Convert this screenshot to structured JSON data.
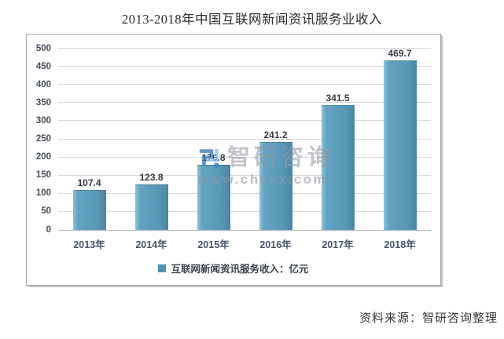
{
  "page": {
    "title": "2013-2018年中国互联网新闻资讯服务业收入",
    "source_note": "资料来源：智研咨询整理"
  },
  "watermark": {
    "brand": "智研咨询",
    "url": "www.chyxx.com"
  },
  "legend": {
    "label": "互联网新闻资讯服务收入：亿元",
    "marker_color": "#4e93b2"
  },
  "chart_data": {
    "type": "bar",
    "title": "2013-2018年中国互联网新闻资讯服务业收入",
    "categories": [
      "2013年",
      "2014年",
      "2015年",
      "2016年",
      "2017年",
      "2018年"
    ],
    "values": [
      107.4,
      123.8,
      176.8,
      241.2,
      341.5,
      469.7
    ],
    "series_name": "互联网新闻资讯服务收入：亿元",
    "unit": "亿元",
    "xlabel": "",
    "ylabel": "",
    "ylim": [
      0,
      500
    ],
    "yticks": [
      0,
      50,
      100,
      150,
      200,
      250,
      300,
      350,
      400,
      450,
      500
    ],
    "grid": true,
    "legend_position": "bottom",
    "bar_color": "#5998b7",
    "value_label_color": "#333840",
    "axis_label_color": "#474e5b",
    "gridline_color": "#d9d9d9"
  }
}
